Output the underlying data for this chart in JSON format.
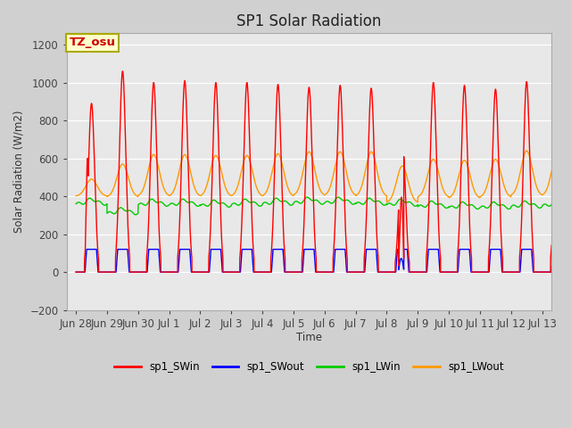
{
  "title": "SP1 Solar Radiation",
  "ylabel": "Solar Radiation (W/m2)",
  "xlabel": "Time",
  "ylim": [
    -200,
    1260
  ],
  "yticks": [
    -200,
    0,
    200,
    400,
    600,
    800,
    1000,
    1200
  ],
  "annotation_text": "TZ_osu",
  "annotation_color": "#cc0000",
  "annotation_bg": "#ffffcc",
  "annotation_border": "#aaaa00",
  "legend_labels": [
    "sp1_SWin",
    "sp1_SWout",
    "sp1_LWin",
    "sp1_LWout"
  ],
  "legend_colors": [
    "#ff0000",
    "#0000ff",
    "#00cc00",
    "#ff9900"
  ],
  "line_colors": {
    "SWin": "#ff0000",
    "SWout": "#0000ff",
    "LWin": "#00cc00",
    "LWout": "#ff9900"
  },
  "bg_color": "#e8e8e8",
  "figwidth": 6.4,
  "figheight": 4.8,
  "dpi": 100,
  "xtick_labels": [
    "Jun 28",
    "Jun 29",
    "Jun 30",
    "Jul 1",
    "Jul 2",
    "Jul 3",
    "Jul 4",
    "Jul 5",
    "Jul 6",
    "Jul 7",
    "Jul 8",
    "Jul 9",
    "Jul 10",
    "Jul 11",
    "Jul 12",
    "Jul 13"
  ],
  "xtick_positions": [
    0,
    1,
    2,
    3,
    4,
    5,
    6,
    7,
    8,
    9,
    10,
    11,
    12,
    13,
    14,
    15
  ]
}
